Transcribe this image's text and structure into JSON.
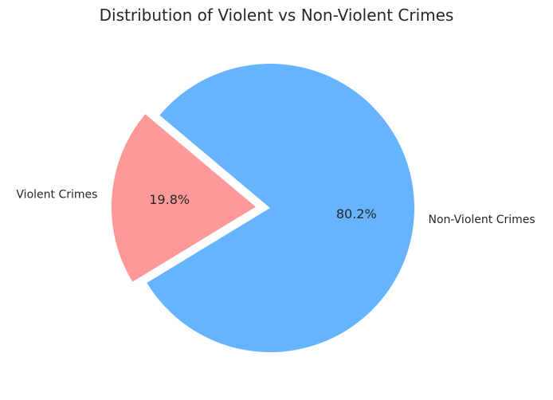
{
  "chart_data": {
    "type": "pie",
    "title": "Distribution of Violent vs Non-Violent Crimes",
    "slices": [
      {
        "label": "Violent Crimes",
        "value": 19.8,
        "pct_label": "19.8%",
        "color": "#ff9999",
        "exploded": true
      },
      {
        "label": "Non-Violent Crimes",
        "value": 80.2,
        "pct_label": "80.2%",
        "color": "#66b3ff",
        "exploded": false
      }
    ],
    "start_angle_deg": 140,
    "direction": "counterclockwise",
    "legend": "none"
  }
}
